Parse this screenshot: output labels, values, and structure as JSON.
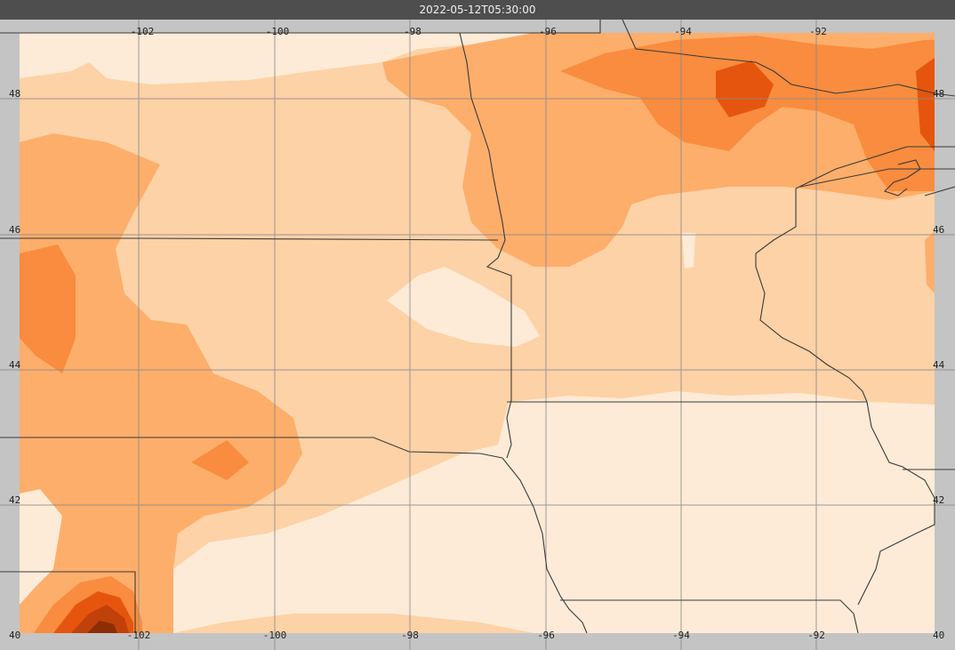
{
  "window": {
    "timestamp": "2022-05-12T05:30:00"
  },
  "map": {
    "longitude_ticks": [
      "-102",
      "-100",
      "-98",
      "-96",
      "-94",
      "-92"
    ],
    "latitude_ticks": [
      "48",
      "46",
      "44",
      "42",
      "40"
    ],
    "colors": {
      "level1": "#fdebd7",
      "level2": "#fdd2a6",
      "level3": "#fdae6b",
      "level4": "#f98c3e",
      "level5": "#e6550d",
      "level6": "#c0410a",
      "level7": "#8c2d04",
      "frame": "#c4c4c4",
      "grid": "#8a8a8a",
      "borders": "#3a3a3a"
    }
  }
}
